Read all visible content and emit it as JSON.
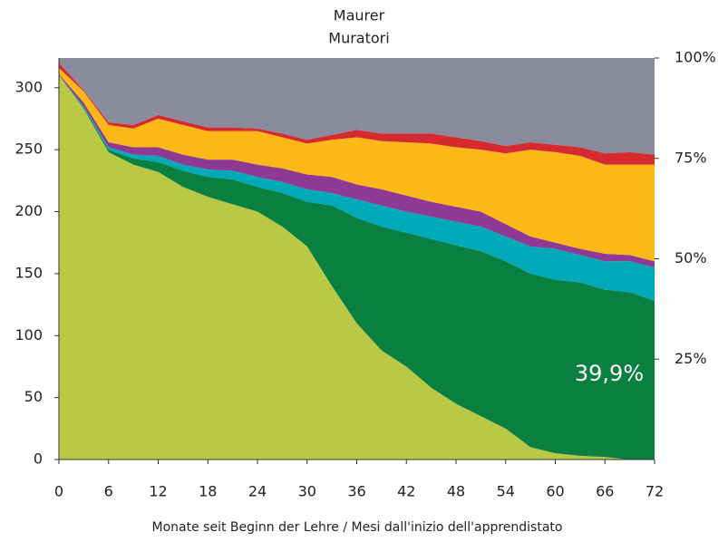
{
  "chart_data": {
    "type": "stacked_area",
    "title": "Maurer",
    "subtitle": "Muratori",
    "x_label": "Monate seit Beginn der Lehre / Mesi dall'inizio dell'apprendistato",
    "annotation": "39,9%",
    "x": [
      0,
      3,
      6,
      9,
      12,
      15,
      18,
      21,
      24,
      27,
      30,
      33,
      36,
      39,
      42,
      45,
      48,
      51,
      54,
      57,
      60,
      63,
      66,
      69,
      72
    ],
    "xlim": [
      0,
      72
    ],
    "xticks": [
      0,
      6,
      12,
      18,
      24,
      30,
      36,
      42,
      48,
      54,
      60,
      66,
      72
    ],
    "ylim": [
      0,
      324
    ],
    "yticks": [
      0,
      50,
      100,
      150,
      200,
      250,
      300
    ],
    "y2lim": [
      0,
      100
    ],
    "y2ticks": [
      {
        "value": 25,
        "label": "25%"
      },
      {
        "value": 50,
        "label": "50%"
      },
      {
        "value": 75,
        "label": "75%"
      },
      {
        "value": 100,
        "label": "100%"
      }
    ],
    "series": [
      {
        "color": "#b9c945",
        "values": [
          310,
          283,
          248,
          238,
          232,
          220,
          212,
          206,
          200,
          188,
          172,
          140,
          110,
          88,
          75,
          58,
          45,
          35,
          25,
          10,
          5,
          3,
          2,
          0,
          0
        ]
      },
      {
        "color": "#0a8040",
        "values": [
          0,
          1,
          2,
          5,
          8,
          13,
          16,
          20,
          20,
          27,
          36,
          65,
          85,
          100,
          108,
          120,
          128,
          133,
          135,
          140,
          140,
          140,
          135,
          135,
          128
        ]
      },
      {
        "color": "#00a9b8",
        "values": [
          0,
          1,
          2,
          3,
          5,
          5,
          6,
          7,
          8,
          9,
          10,
          10,
          15,
          17,
          17,
          18,
          19,
          20,
          20,
          22,
          25,
          22,
          23,
          25,
          27
        ]
      },
      {
        "color": "#8e3a94",
        "values": [
          1,
          3,
          4,
          6,
          7,
          8,
          8,
          9,
          10,
          11,
          12,
          13,
          12,
          13,
          13,
          12,
          12,
          12,
          10,
          8,
          5,
          5,
          6,
          5,
          5
        ]
      },
      {
        "color": "#fbb817",
        "values": [
          5,
          9,
          14,
          15,
          23,
          24,
          23,
          23,
          27,
          25,
          25,
          30,
          38,
          39,
          43,
          47,
          48,
          50,
          57,
          70,
          73,
          75,
          72,
          73,
          78
        ]
      },
      {
        "color": "#d52a2e",
        "values": [
          4,
          1,
          2,
          3,
          3,
          3,
          3,
          3,
          2,
          3,
          3,
          4,
          6,
          6,
          7,
          8,
          8,
          7,
          6,
          6,
          6,
          7,
          9,
          10,
          8
        ]
      },
      {
        "color": "#8a8b9c",
        "values": [
          4,
          26,
          52,
          54,
          46,
          51,
          56,
          56,
          57,
          61,
          66,
          62,
          58,
          61,
          61,
          61,
          64,
          67,
          71,
          68,
          70,
          72,
          77,
          76,
          78
        ]
      }
    ]
  }
}
